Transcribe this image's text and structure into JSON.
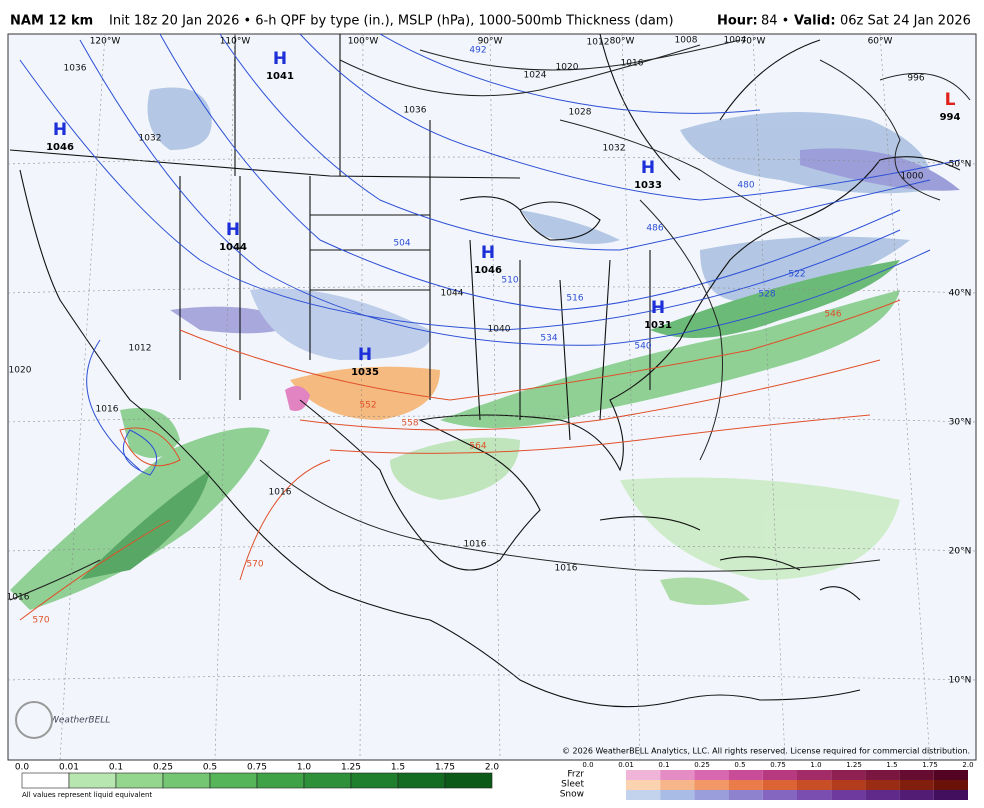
{
  "header": {
    "model": "NAM 12 km",
    "init": "Init 18z 20 Jan 2026 • 6-h QPF by type (in.), MSLP (hPa), 1000-500mb Thickness (dam)",
    "hour_label": "Hour:",
    "hour": "84 •",
    "valid_label": "Valid:",
    "valid": "06z Sat 24 Jan 2026"
  },
  "map": {
    "longitudes": [
      "120°W",
      "110°W",
      "100°W",
      "90°W",
      "80°W",
      "70°W",
      "60°W"
    ],
    "latitudes": [
      "50°N",
      "40°N",
      "30°N",
      "20°N",
      "10°N"
    ],
    "centers": [
      {
        "letter": "H",
        "value": "1041"
      },
      {
        "letter": "H",
        "value": "1046"
      },
      {
        "letter": "H",
        "value": "1044"
      },
      {
        "letter": "H",
        "value": "1046"
      },
      {
        "letter": "H",
        "value": "1033"
      },
      {
        "letter": "H",
        "value": "1031"
      },
      {
        "letter": "H",
        "value": "1035"
      },
      {
        "letter": "L",
        "value": "994"
      }
    ],
    "isobar_labels": [
      "1036",
      "1032",
      "1036",
      "1024",
      "1020",
      "1016",
      "1012",
      "1008",
      "1004",
      "996",
      "1000",
      "1028",
      "1032",
      "1044",
      "1040",
      "1012",
      "1020",
      "1016",
      "1016",
      "1016",
      "1016",
      "1016"
    ],
    "thickness_labels": [
      "492",
      "504",
      "510",
      "516",
      "534",
      "540",
      "480",
      "486",
      "522",
      "528",
      "546",
      "552",
      "558",
      "564",
      "570",
      "570"
    ],
    "logo": "WeatherBELL",
    "copyright": "© 2026 WeatherBELL Analytics, LLC. All rights reserved. License required for commercial distribution."
  },
  "legend": {
    "qpf_ticks": [
      "0.0",
      "0.01",
      "0.1",
      "0.25",
      "0.5",
      "0.75",
      "1.0",
      "1.25",
      "1.5",
      "1.75",
      "2.0"
    ],
    "note": "All values represent liquid equivalent",
    "types": [
      "Frzr",
      "Sleet",
      "Snow"
    ],
    "type_ticks": [
      "0.0",
      "0.01",
      "0.1",
      "0.25",
      "0.5",
      "0.75",
      "1.0",
      "1.25",
      "1.5",
      "1.75",
      "2.0"
    ]
  }
}
